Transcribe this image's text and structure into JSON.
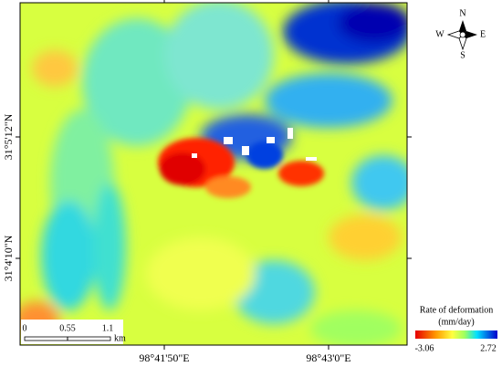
{
  "map": {
    "lat_labels": [
      "31°5'12\"N",
      "31°4'10\"N"
    ],
    "lon_labels": [
      "98°41'50\"E",
      "98°43'0\"E"
    ],
    "compass": {
      "n": "N",
      "s": "S",
      "e": "E",
      "w": "W"
    },
    "scale_bar": {
      "ticks": [
        0,
        0.55,
        1.1
      ],
      "unit": "km"
    },
    "legend": {
      "title": "Rate of deformation",
      "unit": "(mm/day)",
      "min": -3.06,
      "max": 2.72
    }
  }
}
